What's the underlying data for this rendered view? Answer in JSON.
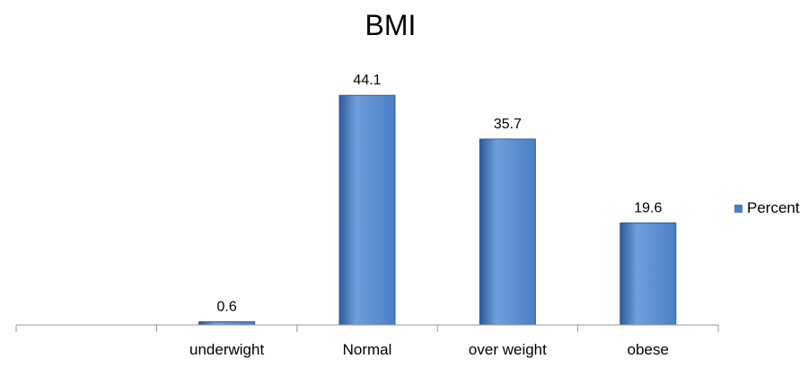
{
  "chart_data": {
    "type": "bar",
    "title": "BMI",
    "categories": [
      "",
      "underwight",
      "Normal",
      "over weight",
      "obese"
    ],
    "series": [
      {
        "name": "Percent",
        "values": [
          null,
          0.6,
          44.1,
          35.7,
          19.6
        ]
      }
    ],
    "data_labels": [
      "",
      "0.6",
      "44.1",
      "35.7",
      "19.6"
    ],
    "ylim": [
      0,
      50
    ],
    "xlabel": "",
    "ylabel": "",
    "grid": false,
    "legend": "right",
    "colors": {
      "bar": "#4a7fc6",
      "bar_dark": "#2e5a9c",
      "bar_light": "#6f9fdc",
      "axis": "#999999"
    }
  }
}
